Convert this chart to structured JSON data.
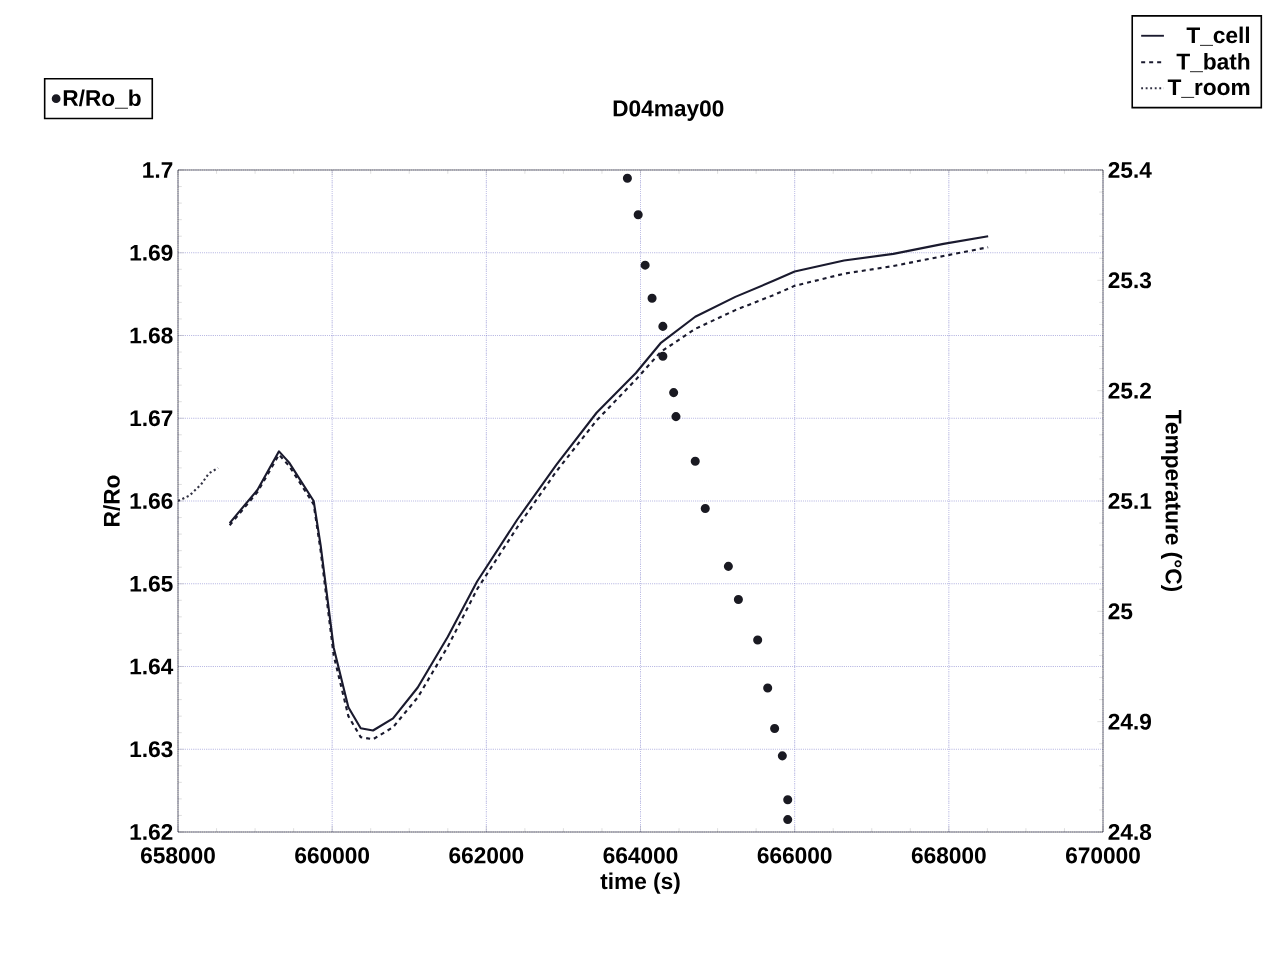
{
  "chart_data": {
    "type": "line",
    "title": "D04may00",
    "xlabel": "time (s)",
    "ylabel": "R/Ro",
    "y2label": "Temperature (°C)",
    "xlim": [
      658000,
      670000
    ],
    "xticks": [
      658000,
      660000,
      662000,
      664000,
      666000,
      668000,
      670000
    ],
    "ylim": [
      1.62,
      1.7
    ],
    "yticks": [
      1.62,
      1.63,
      1.64,
      1.65,
      1.66,
      1.67,
      1.68,
      1.69,
      1.7
    ],
    "y2lim": [
      24.8,
      25.4
    ],
    "y2ticks": [
      24.8,
      24.9,
      25,
      25.1,
      25.2,
      25.3,
      25.4
    ],
    "grid": true,
    "legend": "top",
    "series": [
      {
        "name": "R/Ro_b",
        "type": "scatter",
        "color": "#1a1a22",
        "x": [
          663830,
          663970,
          664060,
          664150,
          664290,
          664290,
          664430,
          664460,
          664710,
          664840,
          665140,
          665270,
          665520,
          665650,
          665740,
          665840,
          665910,
          665910
        ],
        "values": [
          1.699,
          1.6946,
          1.6885,
          1.6845,
          1.6811,
          1.6775,
          1.6731,
          1.6702,
          1.6648,
          1.6591,
          1.6521,
          1.6481,
          1.6432,
          1.6374,
          1.6325,
          1.6292,
          1.6239,
          1.6215
        ]
      },
      {
        "name": "T_cell",
        "axis": "y2",
        "line_style": "solid",
        "color": "#1a1a2e",
        "x": [
          658670,
          659030,
          659310,
          659440,
          659760,
          659850,
          660020,
          660210,
          660370,
          660530,
          660790,
          661110,
          661500,
          661880,
          662400,
          662910,
          663430,
          663940,
          664260,
          664710,
          665230,
          665740,
          666000,
          666640,
          667280,
          667930,
          668510
        ],
        "values": [
          25.08,
          25.11,
          25.145,
          25.135,
          25.1,
          25.06,
          24.967,
          24.913,
          24.894,
          24.892,
          24.903,
          24.931,
          24.977,
          25.027,
          25.083,
          25.133,
          25.18,
          25.216,
          25.243,
          25.267,
          25.285,
          25.3,
          25.308,
          25.318,
          25.324,
          25.333,
          25.34
        ]
      },
      {
        "name": "T_bath",
        "axis": "y2",
        "line_style": "dashed",
        "color": "#1a1a2e",
        "x": [
          658670,
          659030,
          659310,
          659440,
          659760,
          659850,
          660020,
          660210,
          660370,
          660530,
          660790,
          661110,
          661500,
          661880,
          662400,
          662910,
          663430,
          663940,
          664260,
          664710,
          665230,
          665740,
          666000,
          666640,
          667280,
          667930,
          668510
        ],
        "values": [
          25.078,
          25.108,
          25.142,
          25.132,
          25.097,
          25.055,
          24.96,
          24.905,
          24.886,
          24.884,
          24.895,
          24.922,
          24.968,
          25.02,
          25.076,
          25.127,
          25.173,
          25.21,
          25.235,
          25.256,
          25.273,
          25.287,
          25.295,
          25.306,
          25.313,
          25.322,
          25.33
        ]
      },
      {
        "name": "T_room",
        "axis": "y2",
        "line_style": "dotted",
        "color": "#333344",
        "x": [
          658000,
          658150,
          658300,
          658400,
          658520
        ],
        "values": [
          25.1,
          25.105,
          25.115,
          25.125,
          25.13
        ]
      }
    ]
  }
}
